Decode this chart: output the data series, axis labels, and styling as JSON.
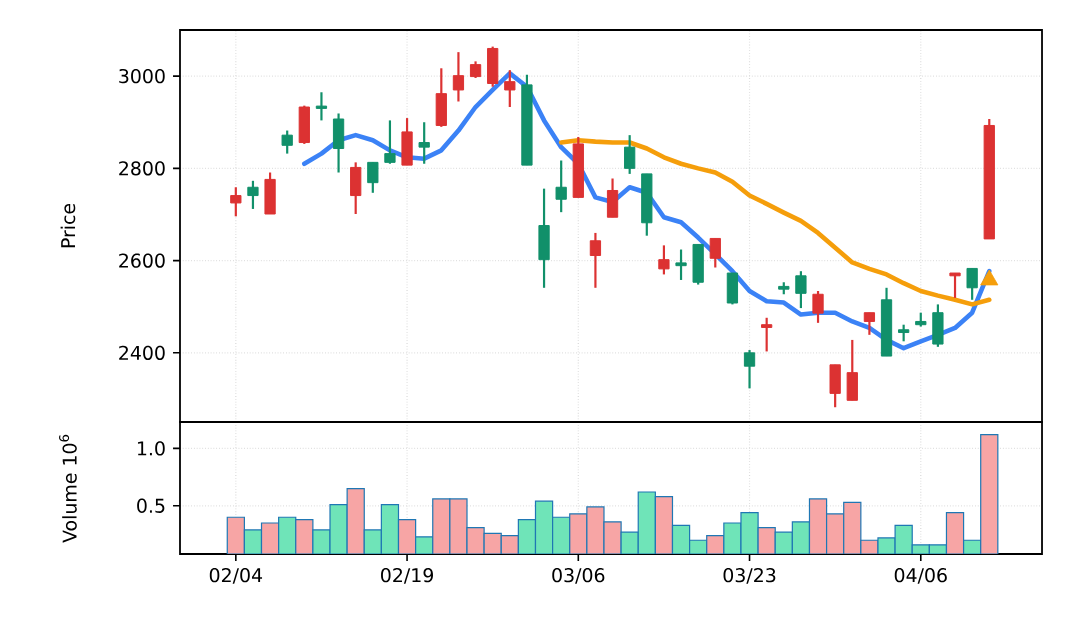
{
  "chart_data": [
    {
      "type": "candlestick",
      "ylabel": "Price",
      "categories": [
        null,
        null,
        null,
        null,
        null,
        null,
        null,
        null,
        null,
        null,
        null,
        null,
        null,
        null,
        null,
        null,
        null,
        null,
        null,
        null,
        null,
        null,
        null,
        null,
        null,
        null,
        null,
        null,
        null,
        null,
        null,
        null,
        null,
        null,
        null,
        null,
        null,
        null,
        null,
        null,
        null,
        null,
        null,
        null,
        null
      ],
      "ohlc": [
        [
          2725,
          2759,
          2696,
          2741
        ],
        [
          2759,
          2773,
          2712,
          2741
        ],
        [
          2701,
          2791,
          2701,
          2776
        ],
        [
          2872,
          2882,
          2832,
          2850
        ],
        [
          2856,
          2936,
          2853,
          2933
        ],
        [
          2935,
          2965,
          2904,
          2930
        ],
        [
          2907,
          2919,
          2791,
          2843
        ],
        [
          2741,
          2813,
          2701,
          2802
        ],
        [
          2813,
          2813,
          2747,
          2769
        ],
        [
          2832,
          2904,
          2810,
          2813
        ],
        [
          2807,
          2909,
          2807,
          2879
        ],
        [
          2856,
          2900,
          2810,
          2846
        ],
        [
          2893,
          3017,
          2890,
          2962
        ],
        [
          2970,
          3052,
          2945,
          3001
        ],
        [
          2999,
          3032,
          2996,
          3025
        ],
        [
          2984,
          3064,
          2977,
          3060
        ],
        [
          2970,
          3013,
          2933,
          2988
        ],
        [
          2981,
          3003,
          2807,
          2807
        ],
        [
          2676,
          2756,
          2541,
          2602
        ],
        [
          2759,
          2817,
          2705,
          2733
        ],
        [
          2737,
          2868,
          2737,
          2853
        ],
        [
          2611,
          2660,
          2541,
          2643
        ],
        [
          2694,
          2778,
          2694,
          2752
        ],
        [
          2846,
          2872,
          2788,
          2800
        ],
        [
          2788,
          2788,
          2654,
          2682
        ],
        [
          2582,
          2633,
          2570,
          2602
        ],
        [
          2595,
          2624,
          2558,
          2589
        ],
        [
          2635,
          2635,
          2548,
          2553
        ],
        [
          2605,
          2648,
          2585,
          2648
        ],
        [
          2573,
          2573,
          2505,
          2508
        ],
        [
          2400,
          2406,
          2323,
          2371
        ],
        [
          2455,
          2476,
          2403,
          2461
        ],
        [
          2544,
          2553,
          2527,
          2538
        ],
        [
          2567,
          2577,
          2497,
          2529
        ],
        [
          2486,
          2534,
          2465,
          2527
        ],
        [
          2312,
          2374,
          2282,
          2374
        ],
        [
          2297,
          2428,
          2297,
          2357
        ],
        [
          2468,
          2487,
          2439,
          2487
        ],
        [
          2515,
          2541,
          2393,
          2393
        ],
        [
          2450,
          2461,
          2425,
          2444
        ],
        [
          2468,
          2487,
          2457,
          2461
        ],
        [
          2487,
          2505,
          2413,
          2419
        ],
        [
          2567,
          2573,
          2519,
          2573
        ],
        [
          2583,
          2583,
          2515,
          2541
        ],
        [
          2647,
          2907,
          2647,
          2893
        ]
      ],
      "colors": [
        "#dc3232",
        "#11906a",
        "#dc3232",
        "#11906a",
        "#dc3232",
        "#11906a",
        "#11906a",
        "#dc3232",
        "#11906a",
        "#11906a",
        "#dc3232",
        "#11906a",
        "#dc3232",
        "#dc3232",
        "#dc3232",
        "#dc3232",
        "#dc3232",
        "#11906a",
        "#11906a",
        "#11906a",
        "#dc3232",
        "#dc3232",
        "#dc3232",
        "#11906a",
        "#11906a",
        "#dc3232",
        "#11906a",
        "#11906a",
        "#dc3232",
        "#11906a",
        "#11906a",
        "#dc3232",
        "#11906a",
        "#11906a",
        "#dc3232",
        "#dc3232",
        "#dc3232",
        "#dc3232",
        "#11906a",
        "#11906a",
        "#11906a",
        "#11906a",
        "#dc3232",
        "#11906a",
        "#dc3232"
      ],
      "series": [
        {
          "type": "line",
          "color": "#3b82f6",
          "values": [
            null,
            null,
            null,
            null,
            2810,
            2832,
            2861,
            2872,
            2861,
            2839,
            2824,
            2821,
            2839,
            2882,
            2933,
            2970,
            3006,
            2977,
            2904,
            2846,
            2810,
            2737,
            2727,
            2759,
            2747,
            2694,
            2683,
            2650,
            2614,
            2577,
            2534,
            2512,
            2509,
            2483,
            2487,
            2487,
            2468,
            2454,
            2428,
            2410,
            2425,
            2439,
            2454,
            2487,
            2577
          ]
        },
        {
          "type": "line",
          "color": "#f59e0b",
          "values": [
            null,
            null,
            null,
            null,
            null,
            null,
            null,
            null,
            null,
            null,
            null,
            null,
            null,
            null,
            null,
            null,
            null,
            null,
            null,
            2856,
            2861,
            2858,
            2856,
            2856,
            2843,
            2824,
            2810,
            2800,
            2791,
            2771,
            2741,
            2723,
            2704,
            2686,
            2660,
            2628,
            2596,
            2582,
            2570,
            2551,
            2534,
            2524,
            2515,
            2505,
            2515
          ]
        },
        {
          "type": "scatter",
          "marker": "triangle",
          "color": "#f59e0b",
          "values": [
            null,
            null,
            null,
            null,
            null,
            null,
            null,
            null,
            null,
            null,
            null,
            null,
            null,
            null,
            null,
            null,
            null,
            null,
            null,
            null,
            null,
            null,
            null,
            null,
            null,
            null,
            null,
            null,
            null,
            null,
            null,
            null,
            null,
            null,
            null,
            null,
            null,
            null,
            null,
            null,
            null,
            null,
            null,
            null,
            2558
          ]
        }
      ],
      "ylim": [
        2250,
        3100
      ],
      "yticks": [
        2400,
        2600,
        2800,
        3000
      ],
      "grid": true,
      "tick_labels": "y"
    },
    {
      "type": "bar",
      "ylabel": "Volume  10$^{6}$",
      "categories": [
        "02/04",
        null,
        null,
        null,
        null,
        null,
        null,
        null,
        null,
        null,
        "02/19",
        null,
        null,
        null,
        null,
        null,
        null,
        null,
        null,
        null,
        "03/06",
        null,
        null,
        null,
        null,
        null,
        null,
        null,
        null,
        null,
        "03/23",
        null,
        null,
        null,
        null,
        null,
        null,
        null,
        null,
        null,
        "04/06",
        null,
        null,
        null,
        null
      ],
      "values": [
        0.4,
        0.29,
        0.35,
        0.4,
        0.38,
        0.29,
        0.51,
        0.65,
        0.29,
        0.51,
        0.38,
        0.23,
        0.56,
        0.56,
        0.31,
        0.26,
        0.24,
        0.38,
        0.54,
        0.4,
        0.43,
        0.49,
        0.36,
        0.27,
        0.62,
        0.58,
        0.33,
        0.2,
        0.24,
        0.35,
        0.44,
        0.31,
        0.27,
        0.36,
        0.56,
        0.43,
        0.53,
        0.2,
        0.22,
        0.33,
        0.16,
        0.16,
        0.44,
        0.2,
        1.12
      ],
      "colors": [
        "#f7a5a5",
        "#6fe4b8",
        "#f7a5a5",
        "#6fe4b8",
        "#f7a5a5",
        "#6fe4b8",
        "#6fe4b8",
        "#f7a5a5",
        "#6fe4b8",
        "#6fe4b8",
        "#f7a5a5",
        "#6fe4b8",
        "#f7a5a5",
        "#f7a5a5",
        "#f7a5a5",
        "#f7a5a5",
        "#f7a5a5",
        "#6fe4b8",
        "#6fe4b8",
        "#6fe4b8",
        "#f7a5a5",
        "#f7a5a5",
        "#f7a5a5",
        "#6fe4b8",
        "#6fe4b8",
        "#f7a5a5",
        "#6fe4b8",
        "#6fe4b8",
        "#f7a5a5",
        "#6fe4b8",
        "#6fe4b8",
        "#f7a5a5",
        "#6fe4b8",
        "#6fe4b8",
        "#f7a5a5",
        "#f7a5a5",
        "#f7a5a5",
        "#f7a5a5",
        "#6fe4b8",
        "#6fe4b8",
        "#6fe4b8",
        "#6fe4b8",
        "#f7a5a5",
        "#6fe4b8",
        "#f7a5a5"
      ],
      "ylim": [
        0.08,
        1.23
      ],
      "yticks": [
        {
          "value": 0.5,
          "label": "0.5"
        },
        {
          "value": 1.0,
          "label": "1.0"
        }
      ],
      "grid": true
    }
  ]
}
